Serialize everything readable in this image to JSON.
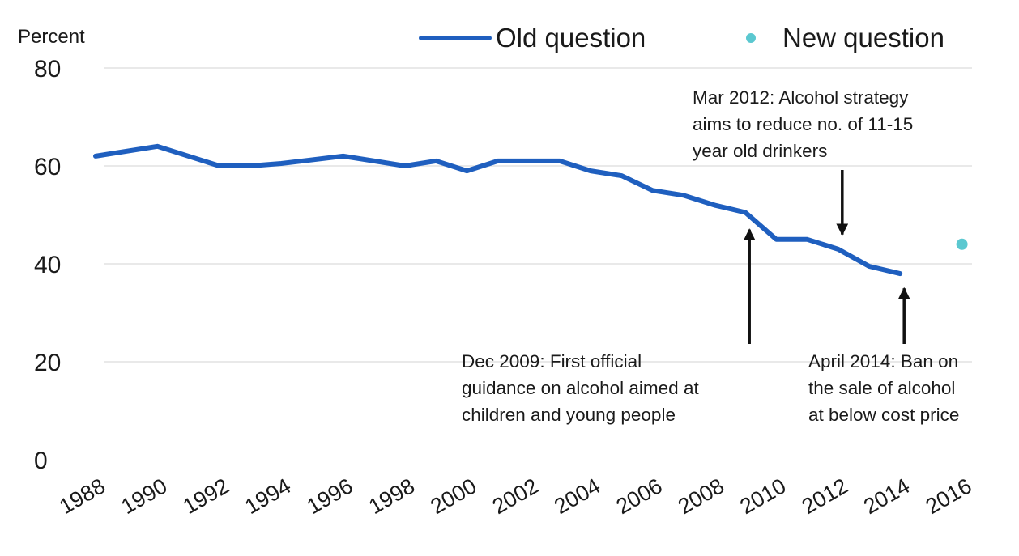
{
  "chart_data": {
    "type": "line",
    "ylabel": "Percent",
    "ylim": [
      0,
      80
    ],
    "yticks": [
      "0",
      "20",
      "40",
      "60",
      "80"
    ],
    "xlim": [
      1988,
      2016
    ],
    "xticks": [
      "1988",
      "1990",
      "1992",
      "1994",
      "1996",
      "1998",
      "2000",
      "2002",
      "2004",
      "2006",
      "2008",
      "2010",
      "2012",
      "2014",
      "2016"
    ],
    "grid": true,
    "legend_position": "top-right",
    "series": [
      {
        "name": "Old question",
        "color": "#1f5fbf",
        "x": [
          1988,
          1990,
          1992,
          1993,
          1994,
          1996,
          1997,
          1998,
          1999,
          2000,
          2001,
          2002,
          2003,
          2004,
          2005,
          2006,
          2007,
          2008,
          2009,
          2010,
          2011,
          2012,
          2013,
          2014
        ],
        "y": [
          62,
          64,
          60,
          60,
          60.5,
          62,
          61,
          60,
          61,
          59,
          61,
          61,
          61,
          59,
          58,
          55,
          54,
          52,
          50.5,
          45,
          45,
          43,
          39.5,
          38
        ]
      },
      {
        "name": "New question",
        "color": "#5bc8d0",
        "x": [
          2016
        ],
        "y": [
          44
        ]
      }
    ],
    "annotations": [
      {
        "id": "dec-2009",
        "lines": [
          "Dec 2009: First  official",
          "guidance on alcohol aimed at",
          "children and young people"
        ],
        "arrow_x": 2009,
        "arrow_to_y": 47,
        "arrow_direction": "up"
      },
      {
        "id": "mar-2012",
        "lines": [
          "Mar 2012: Alcohol strategy",
          "aims to reduce no. of 11-15",
          "year old drinkers"
        ],
        "arrow_x": 2012,
        "arrow_to_y": 46,
        "arrow_direction": "down"
      },
      {
        "id": "apr-2014",
        "lines": [
          "April 2014: Ban on",
          "the sale of alcohol",
          "at below cost price"
        ],
        "arrow_x": 2014,
        "arrow_to_y": 35,
        "arrow_direction": "up"
      }
    ]
  }
}
